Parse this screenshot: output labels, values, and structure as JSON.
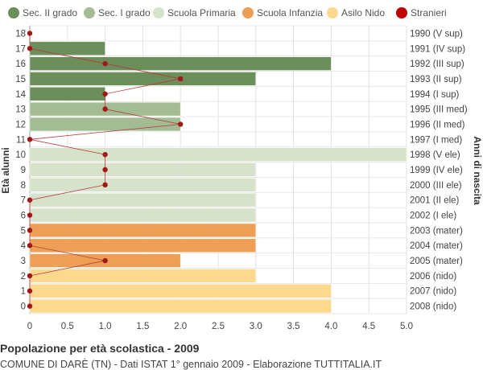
{
  "chart_data": {
    "type": "bar",
    "orientation": "horizontal",
    "title": "Popolazione per età scolastica - 2009",
    "subtitle": "COMUNE DI DARÈ (TN) - Dati ISTAT 1° gennaio 2009 - Elaborazione TUTTITALIA.IT",
    "ylabel": "Età alunni",
    "ylabel_right": "Anni di nascita",
    "xlim": [
      0,
      5
    ],
    "x_ticks": [
      "0",
      "0.5",
      "1.0",
      "1.5",
      "2.0",
      "2.5",
      "3.0",
      "3.5",
      "4.0",
      "4.5",
      "5.0"
    ],
    "grid": true,
    "legend_position": "top",
    "legend": [
      {
        "key": "sec2",
        "name": "Sec. II grado",
        "color": "#6b8e5a"
      },
      {
        "key": "sec1",
        "name": "Sec. I grado",
        "color": "#a3bc94"
      },
      {
        "key": "prim",
        "name": "Scuola Primaria",
        "color": "#d6e2c9"
      },
      {
        "key": "inf",
        "name": "Scuola Infanzia",
        "color": "#ed9f55"
      },
      {
        "key": "nido",
        "name": "Asilo Nido",
        "color": "#fdd98e"
      },
      {
        "key": "stranieri",
        "name": "Stranieri",
        "color": "#c00000"
      }
    ],
    "rows": [
      {
        "age": "18",
        "birth": "1990 (V sup)",
        "value": 0,
        "group": "sec2",
        "stranieri": 0
      },
      {
        "age": "17",
        "birth": "1991 (IV sup)",
        "value": 1,
        "group": "sec2",
        "stranieri": 0
      },
      {
        "age": "16",
        "birth": "1992 (III sup)",
        "value": 4,
        "group": "sec2",
        "stranieri": 1
      },
      {
        "age": "15",
        "birth": "1993 (II sup)",
        "value": 3,
        "group": "sec2",
        "stranieri": 2
      },
      {
        "age": "14",
        "birth": "1994 (I sup)",
        "value": 1,
        "group": "sec2",
        "stranieri": 1
      },
      {
        "age": "13",
        "birth": "1995 (III med)",
        "value": 2,
        "group": "sec1",
        "stranieri": 1
      },
      {
        "age": "12",
        "birth": "1996 (II med)",
        "value": 2,
        "group": "sec1",
        "stranieri": 2
      },
      {
        "age": "11",
        "birth": "1997 (I med)",
        "value": 0,
        "group": "sec1",
        "stranieri": 0
      },
      {
        "age": "10",
        "birth": "1998 (V ele)",
        "value": 5,
        "group": "prim",
        "stranieri": 1
      },
      {
        "age": "9",
        "birth": "1999 (IV ele)",
        "value": 3,
        "group": "prim",
        "stranieri": 1
      },
      {
        "age": "8",
        "birth": "2000 (III ele)",
        "value": 3,
        "group": "prim",
        "stranieri": 1
      },
      {
        "age": "7",
        "birth": "2001 (II ele)",
        "value": 3,
        "group": "prim",
        "stranieri": 0
      },
      {
        "age": "6",
        "birth": "2002 (I ele)",
        "value": 3,
        "group": "prim",
        "stranieri": 0
      },
      {
        "age": "5",
        "birth": "2003 (mater)",
        "value": 3,
        "group": "inf",
        "stranieri": 0
      },
      {
        "age": "4",
        "birth": "2004 (mater)",
        "value": 3,
        "group": "inf",
        "stranieri": 0
      },
      {
        "age": "3",
        "birth": "2005 (mater)",
        "value": 2,
        "group": "inf",
        "stranieri": 1
      },
      {
        "age": "2",
        "birth": "2006 (nido)",
        "value": 3,
        "group": "nido",
        "stranieri": 0
      },
      {
        "age": "1",
        "birth": "2007 (nido)",
        "value": 4,
        "group": "nido",
        "stranieri": 0
      },
      {
        "age": "0",
        "birth": "2008 (nido)",
        "value": 4,
        "group": "nido",
        "stranieri": 0
      }
    ]
  }
}
